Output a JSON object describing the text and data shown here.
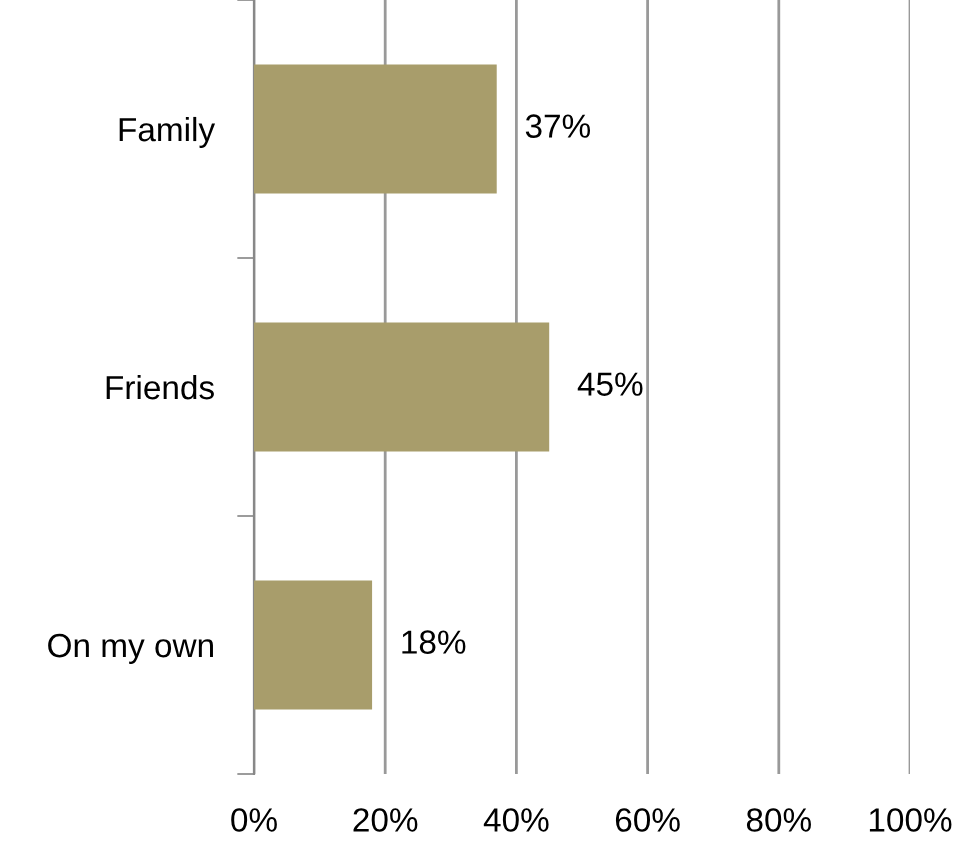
{
  "chart_data": {
    "type": "bar",
    "orientation": "horizontal",
    "categories": [
      "Family",
      "Friends",
      "On my own"
    ],
    "values": [
      37,
      45,
      18
    ],
    "color": "#a89d6b",
    "value_labels": [
      "37%",
      "45%",
      "18%"
    ],
    "xlim": [
      0,
      100
    ],
    "xticks": [
      {
        "value": 0,
        "label": "0%"
      },
      {
        "value": 20,
        "label": "20%"
      },
      {
        "value": 40,
        "label": "40%"
      },
      {
        "value": 60,
        "label": "60%"
      },
      {
        "value": 80,
        "label": "80%"
      },
      {
        "value": 100,
        "label": "100%"
      }
    ],
    "grid": "x",
    "legend": false
  }
}
